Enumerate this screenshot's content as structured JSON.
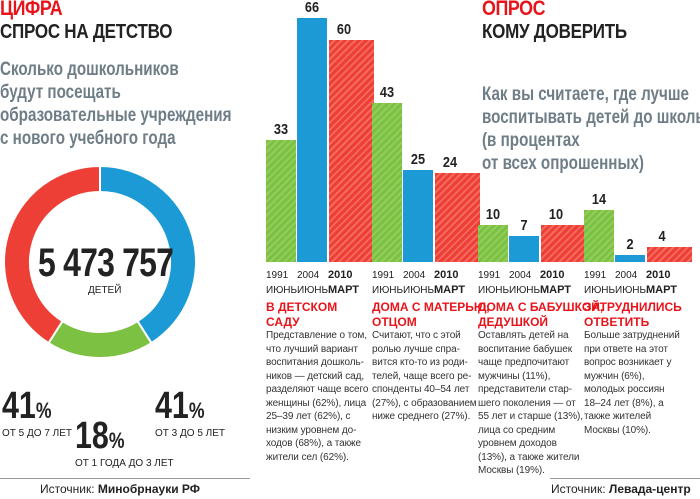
{
  "left": {
    "kicker": "ЦИФРА",
    "headline": "СПРОС НА ДЕТСТВО",
    "question": [
      "Сколько дошкольников",
      "будут посещать",
      "образовательные учреждения",
      "с нового учебного года"
    ],
    "total": "5 473 757",
    "total_label": "ДЕТЕЙ",
    "source_label": "Источник:",
    "source": "Минобрнауки РФ"
  },
  "right": {
    "kicker": "ОПРОС",
    "headline": "КОМУ ДОВЕРИТЬ",
    "question": [
      "Как вы считаете, где лучше",
      "воспитывать детей до школы?",
      "(в процентах",
      "от всех опрошенных)"
    ],
    "source_label": "Источник:",
    "source": "Левада-центр"
  },
  "colors": {
    "green": "#7cc142",
    "blue": "#1b9ad6",
    "red": "#ee3f36"
  },
  "chart_data": [
    {
      "type": "pie",
      "donut": true,
      "title": "Сколько дошкольников будут посещать образовательные учреждения с нового учебного года",
      "center_label": "5 473 757 ДЕТЕЙ",
      "slices": [
        {
          "label": "ОТ 3 ДО 5 ЛЕТ",
          "value": 41,
          "display": "41",
          "color": "#1b9ad6"
        },
        {
          "label": "ОТ 1 ГОДА ДО 3 ЛЕТ",
          "value": 18,
          "display": "18",
          "color": "#7cc142"
        },
        {
          "label": "ОТ 5 ДО 7 ЛЕТ",
          "value": 41,
          "display": "41",
          "color": "#ee3f36"
        }
      ]
    },
    {
      "type": "bar",
      "title": "Как вы считаете, где лучше воспитывать детей до школы? (в процентах от всех опрошенных)",
      "ylim": [
        0,
        66
      ],
      "year_labels": [
        {
          "year": "1991",
          "month": "ИЮНЬ"
        },
        {
          "year": "2004",
          "month": "ИЮНЬ"
        },
        {
          "year": "2010",
          "month": "МАРТ"
        }
      ],
      "groups": [
        {
          "title": [
            "В ДЕТСКОМ",
            "САДУ"
          ],
          "values": [
            33,
            66,
            60
          ],
          "text": "Представление о том, что лучший вариант воспитания дошколь­ников — детский сад, разделяют чаще все­го женщины (62%), ли­ца 25–39 лет (62%), с низким уровнем до­ходов (68%), а также жители сел (62%)."
        },
        {
          "title": [
            "ДОМА С МАТЕРЬЮ,",
            "ОТЦОМ"
          ],
          "values": [
            43,
            25,
            24
          ],
          "text": "Считают, что с этой ролью лучше спра­вится кто-то из роди­телей, чаще всего ре­спонденты 40–54 лет (27%), с образова­нием ниже средне­го (27%)."
        },
        {
          "title": [
            "ДОМА С БАБУШКОЙ,",
            "ДЕДУШКОЙ"
          ],
          "values": [
            10,
            7,
            10
          ],
          "text": "Оставлять детей на воспитание бабу­шек чаще предпочи­тают мужчины (11%), представители стар­шего поколения — от 55 лет и старше (13%), лица со сред­ним уровнем доходов (13%), а также жители Москвы (19%)."
        },
        {
          "title": [
            "ЗАТРУДНИЛИСЬ",
            "ОТВЕТИТЬ"
          ],
          "values": [
            14,
            2,
            4
          ],
          "text": "Больше затруднений при ответе на этот во­прос возникает у муж­чин (6%), молодых россиян 18–24 лет (8%), а также жителей Москвы (10%)."
        }
      ]
    }
  ],
  "pct_sign": "%"
}
